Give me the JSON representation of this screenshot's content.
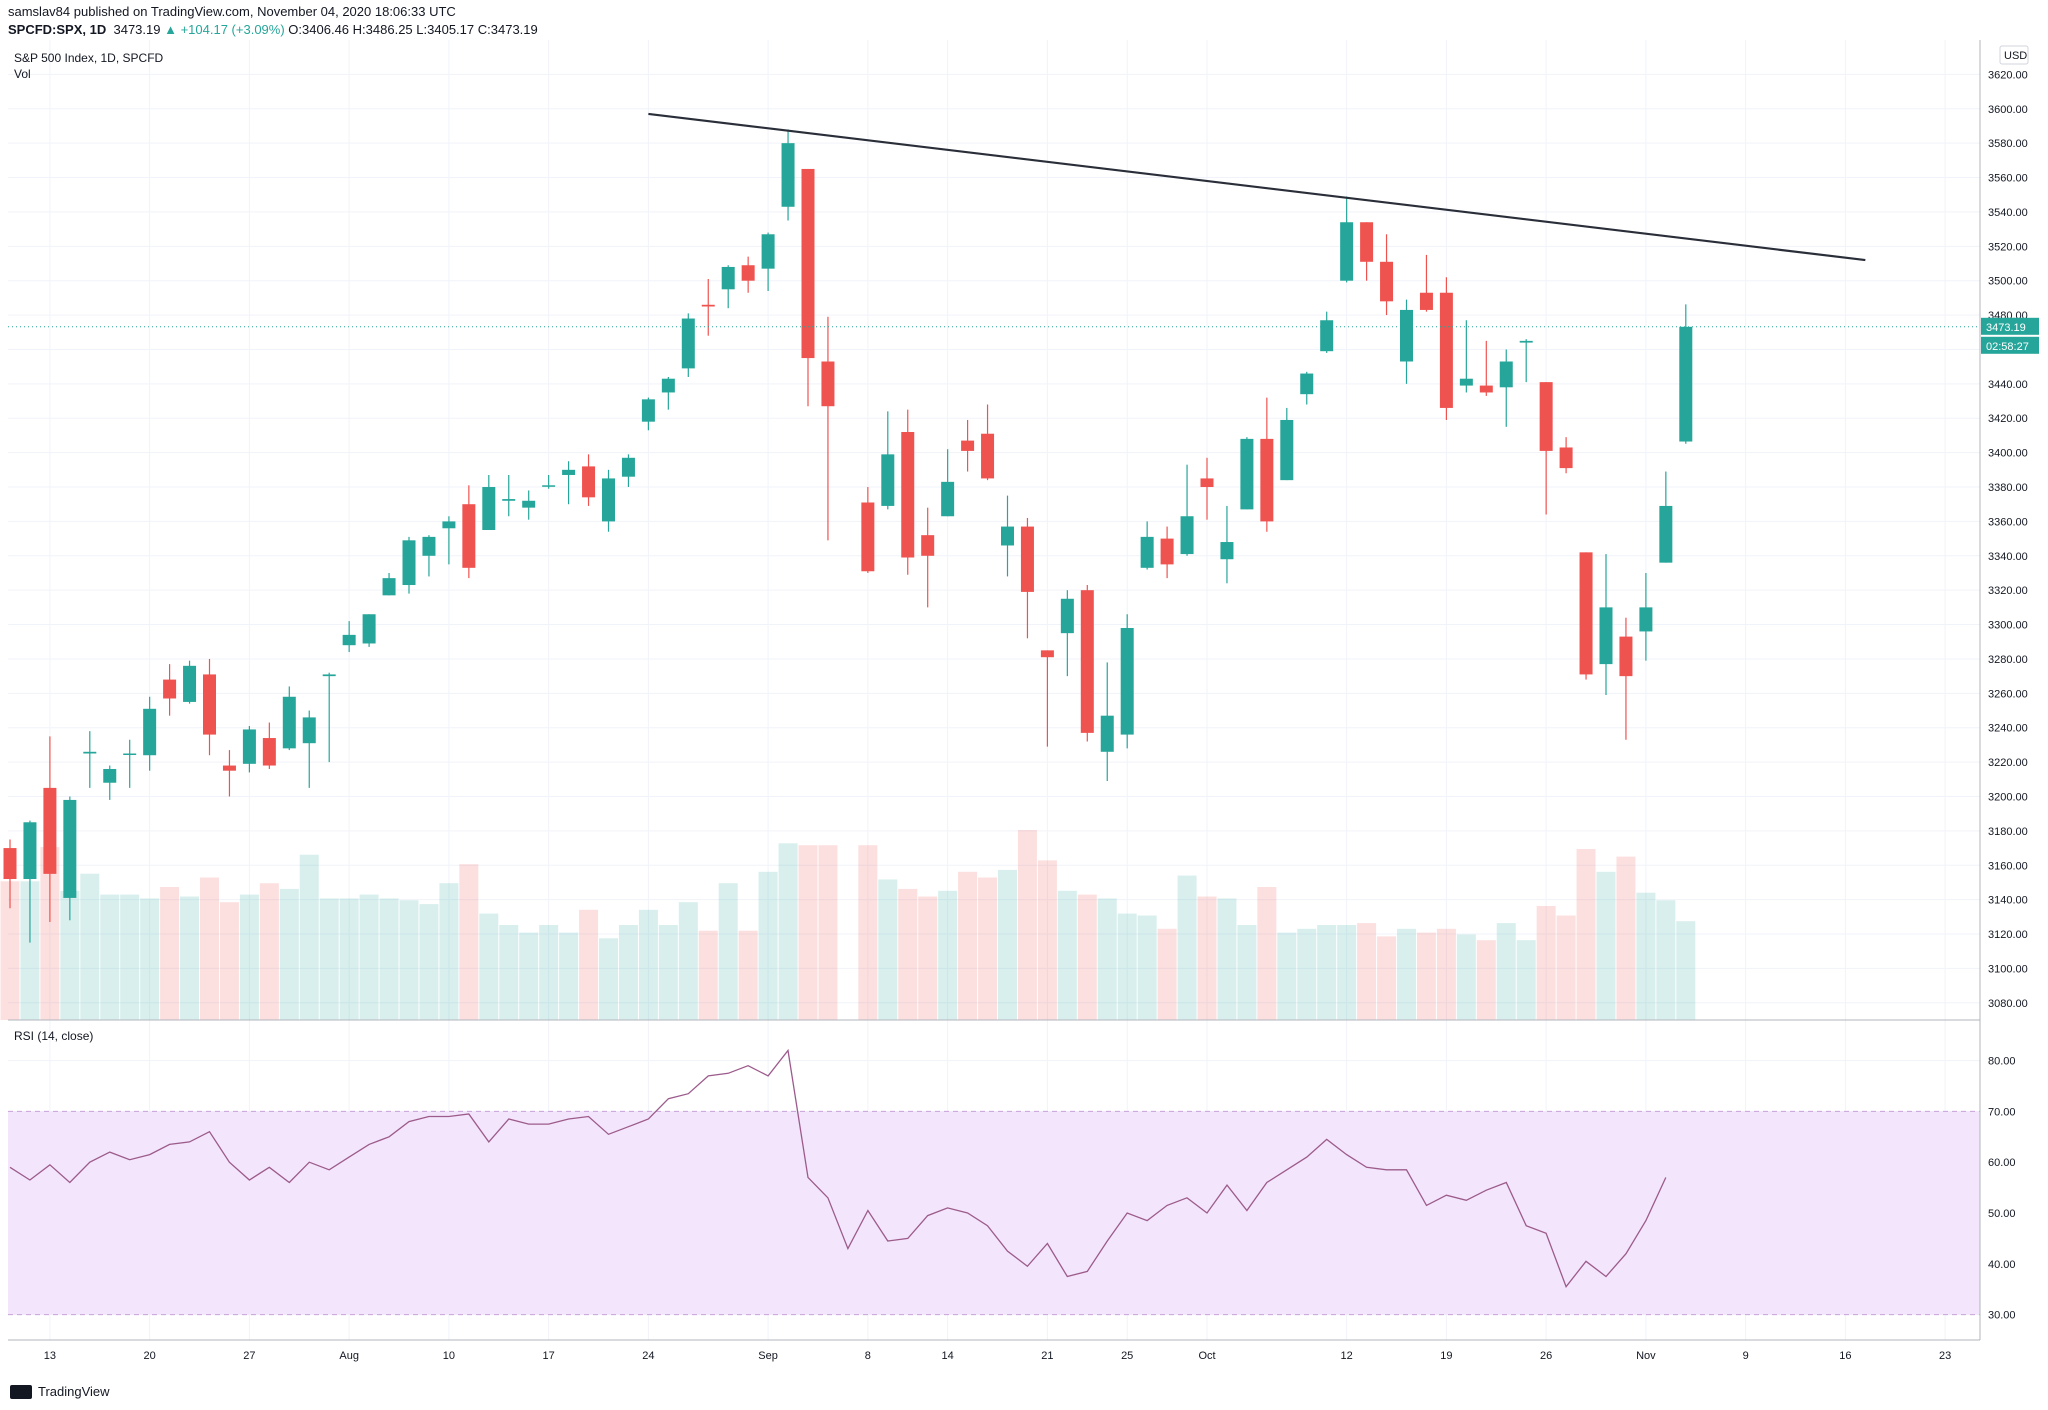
{
  "header": {
    "published_by": "samslav84 published on TradingView.com, November 04, 2020 18:06:33 UTC",
    "symbol": "SPCFD:SPX, 1D",
    "last": "3473.19",
    "change": "▲ +104.17 (+3.09%)",
    "open_label": "O:",
    "open": "3406.46",
    "high_label": "H:",
    "high": "3486.25",
    "low_label": "L:",
    "low": "3405.17",
    "close_label": "C:",
    "close": "3473.19"
  },
  "footer": {
    "brand": "TradingView"
  },
  "colors": {
    "up": "#26a69a",
    "down": "#ef5350",
    "rsi_line": "#9c5b8b",
    "rsi_band": "#f3e5fb",
    "trendline": "#2a2e39",
    "grid": "#f0f3fa"
  },
  "chart_data": [
    {
      "type": "candlestick",
      "title": "S&P 500 Index, 1D, SPCFD",
      "volume_label": "Vol",
      "currency_badge": "USD",
      "last_price_label": "3473.19",
      "countdown_label": "02:58:27",
      "ylim": [
        3070,
        3640
      ],
      "y_ticks": [
        "3080.00",
        "3100.00",
        "3120.00",
        "3140.00",
        "3160.00",
        "3180.00",
        "3200.00",
        "3220.00",
        "3240.00",
        "3260.00",
        "3280.00",
        "3300.00",
        "3320.00",
        "3340.00",
        "3360.00",
        "3380.00",
        "3400.00",
        "3420.00",
        "3440.00",
        "3460.00",
        "3480.00",
        "3500.00",
        "3520.00",
        "3540.00",
        "3560.00",
        "3580.00",
        "3600.00",
        "3620.00"
      ],
      "x_ticks": [
        "13",
        "20",
        "27",
        "Aug",
        "10",
        "17",
        "24",
        "Sep",
        "8",
        "14",
        "21",
        "25",
        "Oct",
        "12",
        "19",
        "26",
        "Nov",
        "9",
        "16",
        "23"
      ],
      "trendline": {
        "start": [
          "2020-08-24",
          3597
        ],
        "end": [
          "2020-11-17",
          3512
        ]
      },
      "candles": [
        {
          "date": "2020-07-09",
          "o": 3170,
          "h": 3175,
          "l": 3135,
          "c": 3152
        },
        {
          "date": "2020-07-10",
          "o": 3152,
          "h": 3186,
          "l": 3115,
          "c": 3185
        },
        {
          "date": "2020-07-13",
          "o": 3205,
          "h": 3235,
          "l": 3127,
          "c": 3155
        },
        {
          "date": "2020-07-14",
          "o": 3141,
          "h": 3200,
          "l": 3128,
          "c": 3198
        },
        {
          "date": "2020-07-15",
          "o": 3225,
          "h": 3238,
          "l": 3205,
          "c": 3226
        },
        {
          "date": "2020-07-16",
          "o": 3208,
          "h": 3218,
          "l": 3198,
          "c": 3216
        },
        {
          "date": "2020-07-17",
          "o": 3225,
          "h": 3233,
          "l": 3205,
          "c": 3225
        },
        {
          "date": "2020-07-20",
          "o": 3224,
          "h": 3258,
          "l": 3215,
          "c": 3251
        },
        {
          "date": "2020-07-21",
          "o": 3268,
          "h": 3277,
          "l": 3247,
          "c": 3257
        },
        {
          "date": "2020-07-22",
          "o": 3255,
          "h": 3279,
          "l": 3254,
          "c": 3276
        },
        {
          "date": "2020-07-23",
          "o": 3271,
          "h": 3280,
          "l": 3224,
          "c": 3236
        },
        {
          "date": "2020-07-24",
          "o": 3218,
          "h": 3227,
          "l": 3200,
          "c": 3215
        },
        {
          "date": "2020-07-27",
          "o": 3219,
          "h": 3241,
          "l": 3214,
          "c": 3239
        },
        {
          "date": "2020-07-28",
          "o": 3234,
          "h": 3243,
          "l": 3216,
          "c": 3218
        },
        {
          "date": "2020-07-29",
          "o": 3228,
          "h": 3264,
          "l": 3227,
          "c": 3258
        },
        {
          "date": "2020-07-30",
          "o": 3231,
          "h": 3250,
          "l": 3205,
          "c": 3246
        },
        {
          "date": "2020-07-31",
          "o": 3270,
          "h": 3272,
          "l": 3220,
          "c": 3271
        },
        {
          "date": "2020-08-03",
          "o": 3288,
          "h": 3302,
          "l": 3284,
          "c": 3294
        },
        {
          "date": "2020-08-04",
          "o": 3289,
          "h": 3306,
          "l": 3287,
          "c": 3306
        },
        {
          "date": "2020-08-05",
          "o": 3317,
          "h": 3330,
          "l": 3317,
          "c": 3327
        },
        {
          "date": "2020-08-06",
          "o": 3323,
          "h": 3351,
          "l": 3318,
          "c": 3349
        },
        {
          "date": "2020-08-07",
          "o": 3340,
          "h": 3352,
          "l": 3328,
          "c": 3351
        },
        {
          "date": "2020-08-10",
          "o": 3356,
          "h": 3363,
          "l": 3335,
          "c": 3360
        },
        {
          "date": "2020-08-11",
          "o": 3370,
          "h": 3381,
          "l": 3327,
          "c": 3333
        },
        {
          "date": "2020-08-12",
          "o": 3355,
          "h": 3387,
          "l": 3355,
          "c": 3380
        },
        {
          "date": "2020-08-13",
          "o": 3372,
          "h": 3387,
          "l": 3363,
          "c": 3373
        },
        {
          "date": "2020-08-14",
          "o": 3368,
          "h": 3378,
          "l": 3361,
          "c": 3372
        },
        {
          "date": "2020-08-17",
          "o": 3381,
          "h": 3387,
          "l": 3379,
          "c": 3381
        },
        {
          "date": "2020-08-18",
          "o": 3387,
          "h": 3395,
          "l": 3370,
          "c": 3390
        },
        {
          "date": "2020-08-19",
          "o": 3392,
          "h": 3399,
          "l": 3369,
          "c": 3374
        },
        {
          "date": "2020-08-20",
          "o": 3360,
          "h": 3390,
          "l": 3354,
          "c": 3385
        },
        {
          "date": "2020-08-21",
          "o": 3386,
          "h": 3399,
          "l": 3380,
          "c": 3397
        },
        {
          "date": "2020-08-24",
          "o": 3418,
          "h": 3432,
          "l": 3413,
          "c": 3431
        },
        {
          "date": "2020-08-25",
          "o": 3435,
          "h": 3444,
          "l": 3425,
          "c": 3443
        },
        {
          "date": "2020-08-26",
          "o": 3449,
          "h": 3481,
          "l": 3444,
          "c": 3478
        },
        {
          "date": "2020-08-27",
          "o": 3486,
          "h": 3501,
          "l": 3468,
          "c": 3485
        },
        {
          "date": "2020-08-28",
          "o": 3495,
          "h": 3509,
          "l": 3484,
          "c": 3508
        },
        {
          "date": "2020-08-31",
          "o": 3509,
          "h": 3514,
          "l": 3493,
          "c": 3500
        },
        {
          "date": "2020-09-01",
          "o": 3507,
          "h": 3528,
          "l": 3494,
          "c": 3527
        },
        {
          "date": "2020-09-02",
          "o": 3543,
          "h": 3588,
          "l": 3535,
          "c": 3580
        },
        {
          "date": "2020-09-03",
          "o": 3565,
          "h": 3565,
          "l": 3427,
          "c": 3455
        },
        {
          "date": "2020-09-04",
          "o": 3453,
          "h": 3479,
          "l": 3349,
          "c": 3427
        },
        {
          "date": "2020-09-08",
          "o": 3371,
          "h": 3380,
          "l": 3330,
          "c": 3331
        },
        {
          "date": "2020-09-09",
          "o": 3369,
          "h": 3424,
          "l": 3367,
          "c": 3399
        },
        {
          "date": "2020-09-10",
          "o": 3412,
          "h": 3425,
          "l": 3329,
          "c": 3339
        },
        {
          "date": "2020-09-11",
          "o": 3352,
          "h": 3368,
          "l": 3310,
          "c": 3340
        },
        {
          "date": "2020-09-14",
          "o": 3363,
          "h": 3402,
          "l": 3363,
          "c": 3383
        },
        {
          "date": "2020-09-15",
          "o": 3407,
          "h": 3419,
          "l": 3389,
          "c": 3401
        },
        {
          "date": "2020-09-16",
          "o": 3411,
          "h": 3428,
          "l": 3384,
          "c": 3385
        },
        {
          "date": "2020-09-17",
          "o": 3346,
          "h": 3375,
          "l": 3328,
          "c": 3357
        },
        {
          "date": "2020-09-18",
          "o": 3357,
          "h": 3362,
          "l": 3292,
          "c": 3319
        },
        {
          "date": "2020-09-21",
          "o": 3285,
          "h": 3285,
          "l": 3229,
          "c": 3281
        },
        {
          "date": "2020-09-22",
          "o": 3295,
          "h": 3320,
          "l": 3270,
          "c": 3315
        },
        {
          "date": "2020-09-23",
          "o": 3320,
          "h": 3323,
          "l": 3232,
          "c": 3237
        },
        {
          "date": "2020-09-24",
          "o": 3226,
          "h": 3278,
          "l": 3209,
          "c": 3247
        },
        {
          "date": "2020-09-25",
          "o": 3236,
          "h": 3306,
          "l": 3228,
          "c": 3298
        },
        {
          "date": "2020-09-28",
          "o": 3333,
          "h": 3360,
          "l": 3332,
          "c": 3351
        },
        {
          "date": "2020-09-29",
          "o": 3350,
          "h": 3357,
          "l": 3327,
          "c": 3335
        },
        {
          "date": "2020-09-30",
          "o": 3341,
          "h": 3393,
          "l": 3340,
          "c": 3363
        },
        {
          "date": "2020-10-01",
          "o": 3385,
          "h": 3397,
          "l": 3361,
          "c": 3380
        },
        {
          "date": "2020-10-02",
          "o": 3338,
          "h": 3369,
          "l": 3324,
          "c": 3348
        },
        {
          "date": "2020-10-05",
          "o": 3367,
          "h": 3409,
          "l": 3367,
          "c": 3408
        },
        {
          "date": "2020-10-06",
          "o": 3408,
          "h": 3432,
          "l": 3354,
          "c": 3360
        },
        {
          "date": "2020-10-07",
          "o": 3384,
          "h": 3426,
          "l": 3384,
          "c": 3419
        },
        {
          "date": "2020-10-08",
          "o": 3434,
          "h": 3447,
          "l": 3428,
          "c": 3446
        },
        {
          "date": "2020-10-09",
          "o": 3459,
          "h": 3482,
          "l": 3458,
          "c": 3477
        },
        {
          "date": "2020-10-12",
          "o": 3500,
          "h": 3549,
          "l": 3499,
          "c": 3534
        },
        {
          "date": "2020-10-13",
          "o": 3534,
          "h": 3534,
          "l": 3500,
          "c": 3511
        },
        {
          "date": "2020-10-14",
          "o": 3511,
          "h": 3527,
          "l": 3480,
          "c": 3488
        },
        {
          "date": "2020-10-15",
          "o": 3453,
          "h": 3489,
          "l": 3440,
          "c": 3483
        },
        {
          "date": "2020-10-16",
          "o": 3493,
          "h": 3515,
          "l": 3482,
          "c": 3483
        },
        {
          "date": "2020-10-19",
          "o": 3493,
          "h": 3502,
          "l": 3419,
          "c": 3426
        },
        {
          "date": "2020-10-20",
          "o": 3439,
          "h": 3477,
          "l": 3435,
          "c": 3443
        },
        {
          "date": "2020-10-21",
          "o": 3439,
          "h": 3465,
          "l": 3433,
          "c": 3435
        },
        {
          "date": "2020-10-22",
          "o": 3438,
          "h": 3460,
          "l": 3415,
          "c": 3453
        },
        {
          "date": "2020-10-23",
          "o": 3464,
          "h": 3466,
          "l": 3441,
          "c": 3465
        },
        {
          "date": "2020-10-26",
          "o": 3441,
          "h": 3441,
          "l": 3364,
          "c": 3401
        },
        {
          "date": "2020-10-27",
          "o": 3403,
          "h": 3409,
          "l": 3388,
          "c": 3391
        },
        {
          "date": "2020-10-28",
          "o": 3342,
          "h": 3342,
          "l": 3268,
          "c": 3271
        },
        {
          "date": "2020-10-29",
          "o": 3277,
          "h": 3341,
          "l": 3259,
          "c": 3310
        },
        {
          "date": "2020-10-30",
          "o": 3293,
          "h": 3304,
          "l": 3233,
          "c": 3270
        },
        {
          "date": "2020-11-02",
          "o": 3296,
          "h": 3330,
          "l": 3279,
          "c": 3310
        },
        {
          "date": "2020-11-03",
          "o": 3336,
          "h": 3389,
          "l": 3336,
          "c": 3369
        },
        {
          "date": "2020-11-04",
          "o": 3406.46,
          "h": 3486.25,
          "l": 3405.17,
          "c": 3473.19
        }
      ],
      "volume_relative": [
        0.73,
        0.73,
        0.91,
        0.68,
        0.77,
        0.66,
        0.66,
        0.64,
        0.7,
        0.65,
        0.75,
        0.62,
        0.66,
        0.72,
        0.69,
        0.87,
        0.64,
        0.64,
        0.66,
        0.64,
        0.63,
        0.61,
        0.72,
        0.82,
        0.56,
        0.5,
        0.46,
        0.5,
        0.46,
        0.58,
        0.43,
        0.5,
        0.58,
        0.5,
        0.62,
        0.47,
        0.72,
        0.47,
        0.78,
        0.93,
        0.92,
        0.92,
        0.92,
        0.74,
        0.69,
        0.65,
        0.68,
        0.78,
        0.75,
        0.79,
        1.0,
        0.84,
        0.68,
        0.66,
        0.64,
        0.56,
        0.55,
        0.48,
        0.76,
        0.65,
        0.64,
        0.5,
        0.7,
        0.46,
        0.48,
        0.5,
        0.5,
        0.51,
        0.44,
        0.48,
        0.46,
        0.48,
        0.45,
        0.42,
        0.51,
        0.42,
        0.6,
        0.55,
        0.9,
        0.78,
        0.86,
        0.67,
        0.63,
        0.52
      ]
    },
    {
      "type": "line",
      "title": "RSI (14, close)",
      "ylim": [
        25,
        88
      ],
      "y_ticks": [
        "30.00",
        "40.00",
        "50.00",
        "60.00",
        "70.00",
        "80.00"
      ],
      "band": [
        30,
        70
      ],
      "series": [
        {
          "values": [
            59,
            56.5,
            59.5,
            56,
            60,
            62,
            60.5,
            61.5,
            63.5,
            64,
            66,
            60,
            56.5,
            59,
            56,
            60,
            58.5,
            61,
            63.5,
            65,
            68,
            69,
            69,
            69.5,
            64,
            68.5,
            67.5,
            67.5,
            68.5,
            69,
            65.5,
            67,
            68.5,
            72.5,
            73.5,
            77,
            77.5,
            79,
            77,
            82,
            57,
            53,
            43,
            50.5,
            44.5,
            45,
            49.5,
            51,
            50,
            47.5,
            42.5,
            39.5,
            44,
            37.5,
            38.5,
            44.5,
            50,
            48.5,
            51.5,
            53,
            50,
            55.5,
            50.5,
            56,
            58.5,
            61,
            64.5,
            61.5,
            59,
            58.5,
            58.5,
            51.5,
            53.5,
            52.5,
            54.5,
            56,
            47.5,
            46,
            35.5,
            40.5,
            37.5,
            42,
            48.5,
            57
          ]
        }
      ]
    }
  ]
}
